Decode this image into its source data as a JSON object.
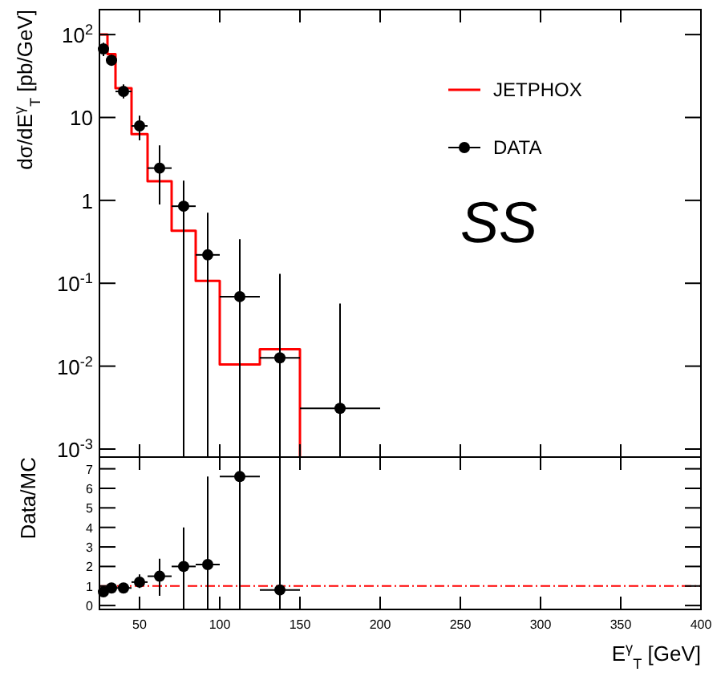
{
  "chart_data": [
    {
      "type": "scatter",
      "ylabel": "dσ/dE$^{γ}$$_{T}$ [pb/GeV]",
      "log": "y",
      "xlim": [
        25,
        400
      ],
      "xticks": [
        50,
        100,
        150,
        200,
        250,
        300,
        350,
        400
      ],
      "ylim": [
        0.0008,
        200
      ],
      "yticks": [
        {
          "value": 0.001,
          "label": "10$^{-3}$"
        },
        {
          "value": 0.01,
          "label": "10$^{-2}$"
        },
        {
          "value": 0.1,
          "label": "10$^{-1}$"
        },
        1,
        10,
        {
          "value": 100,
          "label": "10$^{2}$"
        }
      ],
      "tick_labels": "y",
      "legend": "top right",
      "grid": false,
      "annotations": [
        "SS"
      ],
      "series": [
        {
          "name": "JETPHOX",
          "type": "step",
          "color": "#ff0000",
          "x": [
            25,
            30,
            35,
            45,
            55,
            70,
            85,
            100,
            125,
            150
          ],
          "values": [
            100,
            58,
            22.5,
            6.3,
            1.7,
            0.43,
            0.107,
            0.0105,
            0.016,
            0.0008
          ]
        },
        {
          "name": "DATA",
          "type": "scatter",
          "color": "#000000",
          "marker": "circle",
          "x": [
            27.5,
            32.5,
            40,
            50,
            62.5,
            77.5,
            92.5,
            112.5,
            137.5,
            175
          ],
          "values": [
            67,
            49,
            20.6,
            7.9,
            2.45,
            0.85,
            0.22,
            0.069,
            0.0126,
            0.0031
          ],
          "errors": [
            [
              55,
              80
            ],
            [
              42,
              57
            ],
            [
              17,
              25
            ],
            [
              5.3,
              10.5
            ],
            [
              0.89,
              4.6
            ],
            [
              0.0008,
              1.73
            ],
            [
              0.0008,
              0.71
            ],
            [
              0.0008,
              0.34
            ],
            [
              0.0008,
              0.13
            ],
            [
              0.0008,
              0.057
            ]
          ],
          "xerrors": [
            2.5,
            2.5,
            5,
            5,
            7.5,
            7.5,
            7.5,
            12.5,
            12.5,
            25
          ]
        }
      ]
    },
    {
      "type": "scatter",
      "ylabel": "Data/MC",
      "xlabel": "E$^{γ}$$_{T}$ [GeV]",
      "xlim": [
        25,
        400
      ],
      "xticks": [
        50,
        100,
        150,
        200,
        250,
        300,
        350,
        400
      ],
      "ylim": [
        -0.2,
        7.6
      ],
      "yticks": [
        0,
        1,
        2,
        3,
        4,
        5,
        6,
        7
      ],
      "grid": false,
      "ref_lines": [
        {
          "axis": "y",
          "value": 1,
          "color": "#ff0000",
          "line_style": "dashed"
        }
      ],
      "series": [
        {
          "type": "scatter",
          "color": "#000000",
          "marker": "circle",
          "x": [
            27.5,
            32.5,
            40,
            50,
            62.5,
            77.5,
            92.5,
            112.5,
            137.5
          ],
          "values": [
            0.7,
            0.9,
            0.9,
            1.2,
            1.5,
            2,
            2.1,
            6.6,
            0.8
          ],
          "errors": [
            null,
            null,
            null,
            [
              0.9,
              1.6
            ],
            [
              0.5,
              2.4
            ],
            [
              -0.2,
              4
            ],
            [
              -0.2,
              6.6
            ],
            [
              -0.2,
              7.6
            ],
            [
              -0.2,
              7.6
            ]
          ],
          "xerrors": [
            2.5,
            2.5,
            5,
            5,
            7.5,
            7.5,
            7.5,
            12.5,
            12.5
          ]
        }
      ]
    }
  ]
}
